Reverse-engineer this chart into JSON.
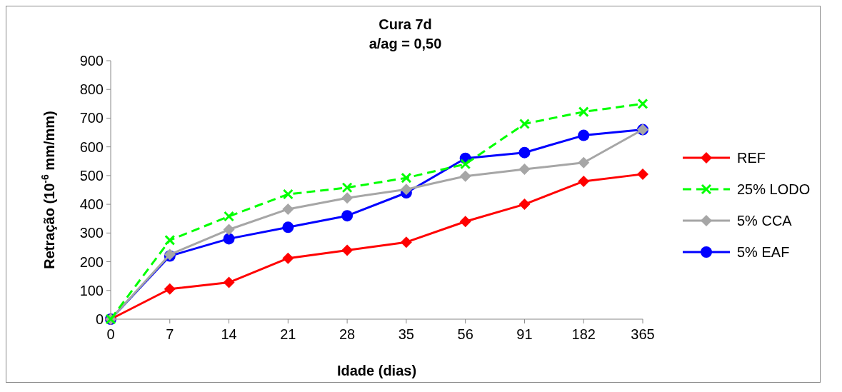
{
  "chart_data": {
    "type": "line",
    "title": "Cura 7d",
    "subtitle": "a/ag = 0,50",
    "xlabel": "Idade (dias)",
    "ylabel": "Retração (10$^{-6}$ mm/mm)",
    "categories": [
      "0",
      "7",
      "14",
      "21",
      "28",
      "35",
      "56",
      "91",
      "182",
      "365"
    ],
    "series": [
      {
        "name": "REF",
        "color": "#ff0000",
        "marker": "diamond",
        "line_style": "solid",
        "values": [
          0,
          105,
          128,
          212,
          240,
          268,
          340,
          400,
          480,
          505
        ]
      },
      {
        "name": "25% LODO",
        "color": "#00ff00",
        "marker": "cross",
        "line_style": "dashed",
        "values": [
          0,
          275,
          358,
          435,
          458,
          492,
          540,
          680,
          722,
          750
        ]
      },
      {
        "name": "5% CCA",
        "color": "#a6a6a6",
        "marker": "diamond",
        "line_style": "solid",
        "values": [
          0,
          225,
          312,
          383,
          422,
          452,
          498,
          522,
          545,
          660
        ]
      },
      {
        "name": "5% EAF",
        "color": "#0000ff",
        "marker": "circle",
        "line_style": "solid",
        "values": [
          0,
          220,
          280,
          320,
          360,
          440,
          560,
          580,
          640,
          660
        ]
      }
    ],
    "ylim": [
      0,
      900
    ],
    "yticks": [
      0,
      100,
      200,
      300,
      400,
      500,
      600,
      700,
      800,
      900
    ],
    "grid": false,
    "legend": "right"
  }
}
